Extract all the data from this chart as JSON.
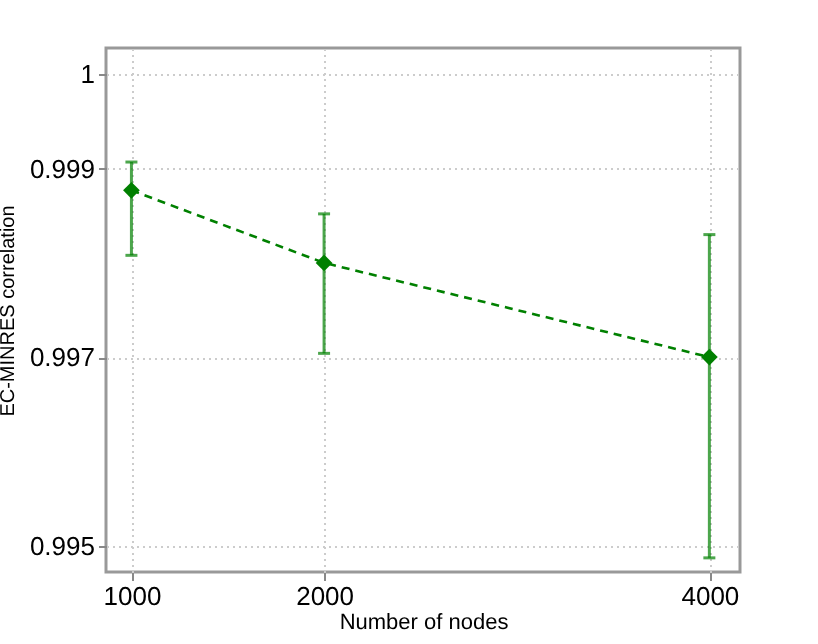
{
  "chart_data": {
    "type": "line",
    "xlabel": "Number of nodes",
    "ylabel": "EC-MINRES correlation",
    "x": [
      1000,
      2000,
      4000
    ],
    "series": [
      {
        "color": "#008000",
        "values": [
          0.99877,
          0.998,
          0.997
        ],
        "errors": [
          [
            0.99808,
            0.99907
          ],
          [
            0.99704,
            0.99852
          ],
          [
            0.99487,
            0.9983
          ]
        ]
      }
    ],
    "xlim": [
      868,
      4159
    ],
    "ylim": [
      0.99472,
      1.00028
    ],
    "xticks": [
      1000,
      2000,
      4000
    ],
    "yticks": [
      0.995,
      0.997,
      0.999,
      1
    ],
    "grid": true,
    "marker": "diamond",
    "line_style": "dashed"
  }
}
